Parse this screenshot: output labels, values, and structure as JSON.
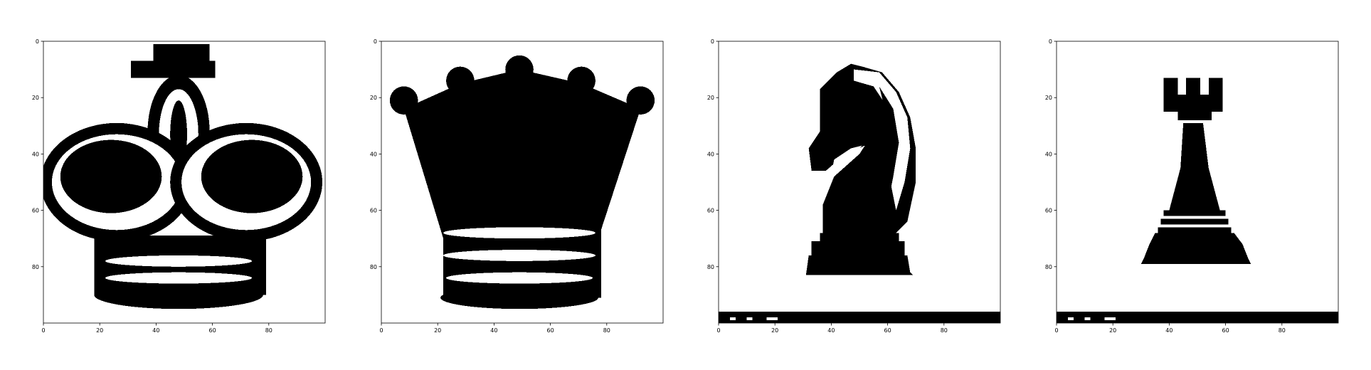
{
  "figure": {
    "background": "#ffffff",
    "colormap": [
      "#ffffff",
      "#000000"
    ]
  },
  "chart_data": [
    {
      "type": "heatmap",
      "subject": "king",
      "title": "",
      "xlabel": "",
      "ylabel": "",
      "xlim": [
        0,
        100
      ],
      "ylim": [
        100,
        0
      ],
      "y_inverted": true,
      "xticks": [
        0,
        20,
        40,
        60,
        80
      ],
      "yticks": [
        0,
        20,
        40,
        60,
        80
      ],
      "cell_values": "binary image, black = 1, white = 0",
      "regions": [
        {
          "shape": "rect",
          "x": [
            39,
            59
          ],
          "y": [
            1,
            12
          ],
          "value": 1
        },
        {
          "shape": "rect",
          "x": [
            31,
            61
          ],
          "y": [
            7,
            13
          ],
          "value": 1
        },
        {
          "shape": "ellipse",
          "cx": 48,
          "cy": 32,
          "rx": 11,
          "ry": 20,
          "value": 1
        },
        {
          "shape": "ellipse",
          "cx": 48,
          "cy": 33,
          "rx": 7,
          "ry": 16,
          "value": 0
        },
        {
          "shape": "ellipse",
          "cx": 48,
          "cy": 33,
          "rx": 3,
          "ry": 12,
          "value": 1
        },
        {
          "shape": "ellipse",
          "cx": 26,
          "cy": 50,
          "rx": 27,
          "ry": 21,
          "value": 1
        },
        {
          "shape": "ellipse",
          "cx": 26,
          "cy": 50,
          "rx": 23,
          "ry": 17,
          "value": 0
        },
        {
          "shape": "ellipse",
          "cx": 24,
          "cy": 48,
          "rx": 18,
          "ry": 13,
          "value": 1
        },
        {
          "shape": "ellipse",
          "cx": 72,
          "cy": 50,
          "rx": 27,
          "ry": 21,
          "value": 1
        },
        {
          "shape": "ellipse",
          "cx": 72,
          "cy": 50,
          "rx": 23,
          "ry": 17,
          "value": 0
        },
        {
          "shape": "ellipse",
          "cx": 74,
          "cy": 48,
          "rx": 18,
          "ry": 13,
          "value": 1
        },
        {
          "shape": "rect",
          "x": [
            18,
            79
          ],
          "y": [
            69,
            90
          ],
          "value": 1
        },
        {
          "shape": "ellipse",
          "cx": 48,
          "cy": 90,
          "rx": 30,
          "ry": 5,
          "value": 1
        },
        {
          "shape": "ellipse",
          "cx": 48,
          "cy": 78,
          "rx": 26,
          "ry": 2,
          "value": 0
        },
        {
          "shape": "ellipse",
          "cx": 48,
          "cy": 84,
          "rx": 26,
          "ry": 2,
          "value": 0
        }
      ]
    },
    {
      "type": "heatmap",
      "subject": "queen",
      "title": "",
      "xlabel": "",
      "ylabel": "",
      "xlim": [
        0,
        100
      ],
      "ylim": [
        100,
        0
      ],
      "y_inverted": true,
      "xticks": [
        0,
        20,
        40,
        60,
        80
      ],
      "yticks": [
        0,
        20,
        40,
        60,
        80
      ],
      "cell_values": "binary image, black = 1, white = 0",
      "regions": [
        {
          "shape": "circle",
          "cx": 8,
          "cy": 21,
          "r": 5,
          "value": 1
        },
        {
          "shape": "circle",
          "cx": 28,
          "cy": 14,
          "r": 5,
          "value": 1
        },
        {
          "shape": "circle",
          "cx": 49,
          "cy": 10,
          "r": 5,
          "value": 1
        },
        {
          "shape": "circle",
          "cx": 71,
          "cy": 14,
          "r": 5,
          "value": 1
        },
        {
          "shape": "circle",
          "cx": 92,
          "cy": 21,
          "r": 5,
          "value": 1
        },
        {
          "shape": "polygon",
          "points": [
            [
              8,
              24
            ],
            [
              28,
              15
            ],
            [
              49,
              10
            ],
            [
              71,
              15
            ],
            [
              92,
              24
            ],
            [
              77,
              70
            ],
            [
              22,
              70
            ]
          ],
          "value": 1
        },
        {
          "shape": "polygon",
          "points": [
            [
              12,
              34
            ],
            [
              25,
              54
            ],
            [
              28,
              18
            ],
            [
              33,
              57
            ],
            [
              47,
              54
            ],
            [
              49,
              14
            ],
            [
              53,
              54
            ],
            [
              66,
              57
            ],
            [
              70,
              18
            ],
            [
              74,
              54
            ],
            [
              88,
              34
            ],
            [
              77,
              70
            ],
            [
              22,
              70
            ]
          ],
          "value": 1
        },
        {
          "shape": "rect",
          "x": [
            22,
            78
          ],
          "y": [
            63,
            91
          ],
          "value": 1
        },
        {
          "shape": "ellipse",
          "cx": 49,
          "cy": 91,
          "rx": 28,
          "ry": 4,
          "value": 1
        },
        {
          "shape": "ellipse",
          "cx": 49,
          "cy": 68,
          "rx": 27,
          "ry": 2,
          "value": 0
        },
        {
          "shape": "ellipse",
          "cx": 49,
          "cy": 76,
          "rx": 27,
          "ry": 2,
          "value": 0
        },
        {
          "shape": "ellipse",
          "cx": 49,
          "cy": 84,
          "rx": 26,
          "ry": 2,
          "value": 0
        }
      ]
    },
    {
      "type": "heatmap",
      "subject": "knight",
      "title": "",
      "xlabel": "",
      "ylabel": "",
      "xlim": [
        0,
        100
      ],
      "ylim": [
        100,
        0
      ],
      "y_inverted": true,
      "xticks": [
        0,
        20,
        40,
        60,
        80
      ],
      "yticks": [
        0,
        20,
        40,
        60,
        80
      ],
      "cell_values": "binary image, black = 1, white = 0",
      "regions": [
        {
          "shape": "polygon",
          "points": [
            [
              36,
              17
            ],
            [
              42,
              11
            ],
            [
              47,
              8
            ],
            [
              51,
              9
            ],
            [
              58,
              11
            ],
            [
              64,
              18
            ],
            [
              68,
              27
            ],
            [
              70,
              38
            ],
            [
              70,
              50
            ],
            [
              67,
              64
            ],
            [
              62,
              69
            ],
            [
              37,
              69
            ],
            [
              37,
              58
            ],
            [
              41,
              48
            ],
            [
              50,
              40
            ],
            [
              52,
              37
            ],
            [
              45,
              40
            ],
            [
              38,
              46
            ],
            [
              33,
              46
            ],
            [
              32,
              38
            ],
            [
              36,
              32
            ]
          ],
          "value": 1
        },
        {
          "shape": "polygon",
          "points": [
            [
              48,
              10
            ],
            [
              57,
              11
            ],
            [
              63,
              18
            ],
            [
              67,
              27
            ],
            [
              68,
              38
            ],
            [
              66,
              50
            ],
            [
              63,
              60
            ],
            [
              61,
              50
            ],
            [
              63,
              38
            ],
            [
              61,
              25
            ],
            [
              55,
              16
            ],
            [
              48,
              14
            ]
          ],
          "value": 0
        },
        {
          "shape": "polygon",
          "points": [
            [
              57,
              16
            ],
            [
              62,
              24
            ],
            [
              64,
              36
            ],
            [
              62,
              48
            ],
            [
              60,
              58
            ],
            [
              58,
              48
            ],
            [
              60,
              36
            ],
            [
              59,
              24
            ]
          ],
          "value": 1
        },
        {
          "shape": "polygon",
          "points": [
            [
              41,
              42
            ],
            [
              47,
              38
            ],
            [
              51,
              37
            ],
            [
              45,
              43
            ],
            [
              40,
              47
            ]
          ],
          "value": 0
        },
        {
          "shape": "rect",
          "x": [
            36,
            64
          ],
          "y": [
            68,
            71
          ],
          "value": 1
        },
        {
          "shape": "rect",
          "x": [
            33,
            66
          ],
          "y": [
            71,
            76
          ],
          "value": 1
        },
        {
          "shape": "polygon",
          "points": [
            [
              32,
              76
            ],
            [
              67,
              76
            ],
            [
              68,
              82
            ],
            [
              69,
              83
            ],
            [
              31,
              83
            ]
          ],
          "value": 1
        },
        {
          "shape": "rect",
          "x": [
            0,
            100
          ],
          "y": [
            96,
            100
          ],
          "value": 1
        },
        {
          "shape": "rect",
          "x": [
            4,
            6
          ],
          "y": [
            98,
            99
          ],
          "value": 0
        },
        {
          "shape": "rect",
          "x": [
            10,
            12
          ],
          "y": [
            98,
            99
          ],
          "value": 0
        },
        {
          "shape": "rect",
          "x": [
            17,
            21
          ],
          "y": [
            98,
            99
          ],
          "value": 0
        }
      ]
    },
    {
      "type": "heatmap",
      "subject": "rook",
      "title": "",
      "xlabel": "",
      "ylabel": "",
      "xlim": [
        0,
        100
      ],
      "ylim": [
        100,
        0
      ],
      "y_inverted": true,
      "xticks": [
        0,
        20,
        40,
        60,
        80
      ],
      "yticks": [
        0,
        20,
        40,
        60,
        80
      ],
      "cell_values": "binary image, black = 1, white = 0",
      "regions": [
        {
          "shape": "rect",
          "x": [
            38,
            43
          ],
          "y": [
            13,
            20
          ],
          "value": 1
        },
        {
          "shape": "rect",
          "x": [
            46,
            51
          ],
          "y": [
            13,
            20
          ],
          "value": 1
        },
        {
          "shape": "rect",
          "x": [
            54,
            59
          ],
          "y": [
            13,
            20
          ],
          "value": 1
        },
        {
          "shape": "rect",
          "x": [
            38,
            59
          ],
          "y": [
            19,
            25
          ],
          "value": 1
        },
        {
          "shape": "rect",
          "x": [
            43,
            55
          ],
          "y": [
            24,
            28
          ],
          "value": 1
        },
        {
          "shape": "polygon",
          "points": [
            [
              45,
              29
            ],
            [
              52,
              29
            ],
            [
              54,
              45
            ],
            [
              58,
              60
            ],
            [
              40,
              60
            ],
            [
              44,
              45
            ]
          ],
          "value": 1
        },
        {
          "shape": "rect",
          "x": [
            38,
            60
          ],
          "y": [
            60,
            62
          ],
          "value": 1
        },
        {
          "shape": "rect",
          "x": [
            37,
            61
          ],
          "y": [
            63,
            65
          ],
          "value": 1
        },
        {
          "shape": "rect",
          "x": [
            36,
            62
          ],
          "y": [
            66,
            68
          ],
          "value": 1
        },
        {
          "shape": "polygon",
          "points": [
            [
              35,
              68
            ],
            [
              63,
              68
            ],
            [
              66,
              72
            ],
            [
              68,
              77
            ],
            [
              69,
              79
            ],
            [
              30,
              79
            ],
            [
              31,
              77
            ],
            [
              33,
              72
            ]
          ],
          "value": 1
        },
        {
          "shape": "rect",
          "x": [
            0,
            100
          ],
          "y": [
            96,
            100
          ],
          "value": 1
        },
        {
          "shape": "rect",
          "x": [
            4,
            6
          ],
          "y": [
            98,
            99
          ],
          "value": 0
        },
        {
          "shape": "rect",
          "x": [
            10,
            12
          ],
          "y": [
            98,
            99
          ],
          "value": 0
        },
        {
          "shape": "rect",
          "x": [
            17,
            21
          ],
          "y": [
            98,
            99
          ],
          "value": 0
        }
      ]
    }
  ]
}
